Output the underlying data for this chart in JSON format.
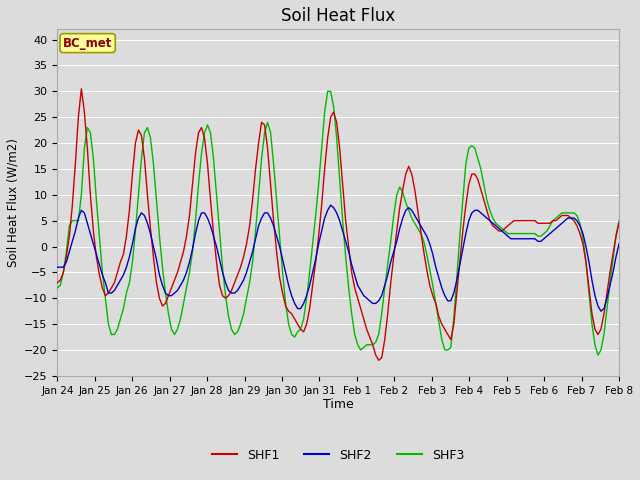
{
  "title": "Soil Heat Flux",
  "xlabel": "Time",
  "ylabel": "Soil Heat Flux (W/m2)",
  "ylim": [
    -25,
    42
  ],
  "yticks": [
    -25,
    -20,
    -15,
    -10,
    -5,
    0,
    5,
    10,
    15,
    20,
    25,
    30,
    35,
    40
  ],
  "background_color": "#dcdcdc",
  "grid_color": "#ffffff",
  "annotation_text": "BC_met",
  "annotation_color": "#8B0000",
  "annotation_bg": "#FFFF99",
  "line_colors": {
    "SHF1": "#CC0000",
    "SHF2": "#0000CC",
    "SHF3": "#00BB00"
  },
  "tick_labels": [
    "Jan 24",
    "Jan 25",
    "Jan 26",
    "Jan 27",
    "Jan 28",
    "Jan 29",
    "Jan 30",
    "Jan 31",
    "Feb 1",
    "Feb 2",
    "Feb 3",
    "Feb 4",
    "Feb 5",
    "Feb 6",
    "Feb 7",
    "Feb 8"
  ],
  "shf1": [
    -7.0,
    -6.5,
    -5.0,
    -2.0,
    2.0,
    8.0,
    16.0,
    25.0,
    30.5,
    26.0,
    19.0,
    10.0,
    3.0,
    -2.0,
    -5.5,
    -8.0,
    -9.5,
    -9.0,
    -8.0,
    -7.0,
    -5.0,
    -3.0,
    -1.5,
    2.0,
    7.0,
    14.0,
    20.0,
    22.5,
    21.5,
    17.0,
    10.0,
    3.5,
    -2.0,
    -7.0,
    -10.0,
    -11.5,
    -11.0,
    -9.5,
    -8.0,
    -6.5,
    -5.0,
    -3.0,
    -1.0,
    2.0,
    6.0,
    12.0,
    18.0,
    22.0,
    23.0,
    21.0,
    16.0,
    9.0,
    2.5,
    -3.0,
    -7.5,
    -9.5,
    -10.0,
    -9.5,
    -8.5,
    -7.0,
    -5.5,
    -4.0,
    -2.0,
    0.5,
    4.0,
    9.0,
    15.0,
    20.0,
    24.0,
    23.5,
    19.0,
    12.0,
    5.0,
    -1.0,
    -6.0,
    -9.0,
    -11.5,
    -12.5,
    -13.0,
    -14.0,
    -15.0,
    -16.0,
    -16.5,
    -15.0,
    -12.0,
    -7.5,
    -3.0,
    2.0,
    8.0,
    15.0,
    21.0,
    25.0,
    26.0,
    24.0,
    19.0,
    12.0,
    5.0,
    0.0,
    -5.0,
    -8.0,
    -10.0,
    -12.0,
    -14.0,
    -16.0,
    -17.5,
    -19.0,
    -21.0,
    -22.0,
    -21.5,
    -18.0,
    -13.0,
    -7.0,
    -2.0,
    3.0,
    7.5,
    11.0,
    14.0,
    15.5,
    14.0,
    11.0,
    7.0,
    3.0,
    -1.0,
    -4.5,
    -7.5,
    -9.5,
    -11.0,
    -13.5,
    -15.0,
    -16.0,
    -17.0,
    -18.0,
    -15.0,
    -9.0,
    -3.0,
    3.0,
    8.0,
    12.0,
    14.0,
    14.0,
    13.0,
    11.0,
    9.0,
    7.0,
    5.0,
    4.0,
    3.5,
    3.0,
    3.0,
    3.5,
    4.0,
    4.5,
    5.0,
    5.0,
    5.0,
    5.0,
    5.0,
    5.0,
    5.0,
    5.0,
    4.5,
    4.5,
    4.5,
    4.5,
    4.5,
    5.0,
    5.0,
    5.5,
    6.0,
    6.0,
    6.0,
    5.5,
    5.0,
    4.0,
    2.5,
    0.5,
    -3.0,
    -8.0,
    -13.0,
    -16.0,
    -17.0,
    -16.0,
    -13.0,
    -9.0,
    -5.0,
    -1.5,
    2.0,
    4.5
  ],
  "shf2": [
    -4.0,
    -4.0,
    -4.0,
    -3.0,
    -1.0,
    1.0,
    3.0,
    5.5,
    7.0,
    6.5,
    4.5,
    2.5,
    0.5,
    -1.5,
    -3.5,
    -5.5,
    -7.0,
    -9.0,
    -9.0,
    -8.5,
    -7.5,
    -6.5,
    -5.5,
    -4.0,
    -2.0,
    0.5,
    3.5,
    5.5,
    6.5,
    6.0,
    4.5,
    2.5,
    0.0,
    -2.5,
    -5.5,
    -7.5,
    -9.0,
    -9.5,
    -9.5,
    -9.0,
    -8.5,
    -7.5,
    -6.5,
    -5.0,
    -3.0,
    -0.5,
    2.5,
    5.0,
    6.5,
    6.5,
    5.5,
    4.0,
    2.0,
    0.0,
    -2.5,
    -5.0,
    -7.0,
    -8.5,
    -9.0,
    -9.0,
    -8.5,
    -7.5,
    -6.5,
    -5.0,
    -3.0,
    -1.0,
    1.5,
    4.0,
    5.5,
    6.5,
    6.5,
    5.5,
    4.0,
    2.0,
    0.0,
    -2.5,
    -5.0,
    -7.5,
    -9.5,
    -11.0,
    -12.0,
    -12.0,
    -11.0,
    -9.5,
    -7.5,
    -5.0,
    -2.5,
    0.5,
    3.0,
    5.5,
    7.0,
    8.0,
    7.5,
    6.5,
    5.0,
    3.0,
    1.0,
    -1.0,
    -3.5,
    -5.5,
    -7.5,
    -8.5,
    -9.5,
    -10.0,
    -10.5,
    -11.0,
    -11.0,
    -10.5,
    -9.5,
    -7.5,
    -5.5,
    -3.0,
    -1.0,
    1.0,
    3.5,
    5.5,
    7.0,
    7.5,
    7.0,
    6.0,
    5.0,
    4.0,
    3.0,
    2.0,
    0.5,
    -1.5,
    -4.0,
    -6.0,
    -8.0,
    -9.5,
    -10.5,
    -10.5,
    -9.0,
    -6.5,
    -3.5,
    -0.5,
    2.5,
    5.0,
    6.5,
    7.0,
    7.0,
    6.5,
    6.0,
    5.5,
    5.0,
    4.5,
    4.0,
    3.5,
    3.0,
    2.5,
    2.0,
    1.5,
    1.5,
    1.5,
    1.5,
    1.5,
    1.5,
    1.5,
    1.5,
    1.5,
    1.0,
    1.0,
    1.5,
    2.0,
    2.5,
    3.0,
    3.5,
    4.0,
    4.5,
    5.0,
    5.5,
    5.5,
    5.5,
    5.0,
    4.0,
    2.5,
    0.0,
    -3.0,
    -6.5,
    -9.5,
    -11.5,
    -12.5,
    -12.0,
    -10.0,
    -7.5,
    -5.0,
    -2.0,
    0.5
  ],
  "shf3": [
    -8.0,
    -7.5,
    -5.0,
    -1.0,
    4.0,
    5.0,
    5.0,
    5.0,
    10.0,
    19.0,
    23.0,
    22.0,
    17.0,
    9.0,
    2.0,
    -5.0,
    -10.0,
    -15.0,
    -17.0,
    -17.0,
    -16.0,
    -14.0,
    -12.0,
    -9.0,
    -7.0,
    -3.0,
    3.0,
    10.0,
    17.0,
    22.0,
    23.0,
    21.0,
    16.0,
    9.0,
    2.0,
    -4.0,
    -9.0,
    -13.0,
    -16.0,
    -17.0,
    -16.0,
    -14.0,
    -11.0,
    -8.0,
    -5.0,
    -1.0,
    5.0,
    12.0,
    18.0,
    22.0,
    23.5,
    22.0,
    17.0,
    10.0,
    3.0,
    -4.0,
    -9.5,
    -13.5,
    -16.0,
    -17.0,
    -16.5,
    -15.0,
    -13.0,
    -10.0,
    -7.0,
    -3.0,
    3.0,
    10.0,
    17.0,
    22.0,
    24.0,
    22.0,
    16.0,
    9.0,
    2.0,
    -5.0,
    -11.0,
    -15.0,
    -17.0,
    -17.5,
    -16.5,
    -16.0,
    -14.0,
    -10.0,
    -5.0,
    0.5,
    6.0,
    12.0,
    19.0,
    26.0,
    30.0,
    30.0,
    27.0,
    21.0,
    13.0,
    5.0,
    -2.0,
    -8.0,
    -13.0,
    -17.0,
    -19.0,
    -20.0,
    -19.5,
    -19.0,
    -19.0,
    -19.0,
    -18.5,
    -17.0,
    -13.0,
    -8.0,
    -3.5,
    1.0,
    6.0,
    10.0,
    11.5,
    10.5,
    8.5,
    7.0,
    5.5,
    4.5,
    3.5,
    2.5,
    1.0,
    -1.5,
    -4.5,
    -7.5,
    -11.0,
    -14.5,
    -18.0,
    -20.0,
    -20.0,
    -19.5,
    -14.0,
    -6.0,
    2.0,
    9.0,
    16.0,
    19.0,
    19.5,
    19.0,
    17.0,
    15.0,
    12.0,
    9.0,
    7.0,
    5.5,
    4.5,
    4.0,
    3.5,
    3.0,
    2.5,
    2.5,
    2.5,
    2.5,
    2.5,
    2.5,
    2.5,
    2.5,
    2.5,
    2.5,
    2.0,
    2.0,
    2.5,
    3.0,
    4.0,
    5.0,
    5.5,
    6.0,
    6.5,
    6.5,
    6.5,
    6.5,
    6.5,
    6.0,
    4.5,
    1.5,
    -3.0,
    -9.0,
    -15.0,
    -19.0,
    -21.0,
    -20.0,
    -17.0,
    -12.0,
    -7.0,
    -2.5,
    2.0,
    5.0
  ]
}
